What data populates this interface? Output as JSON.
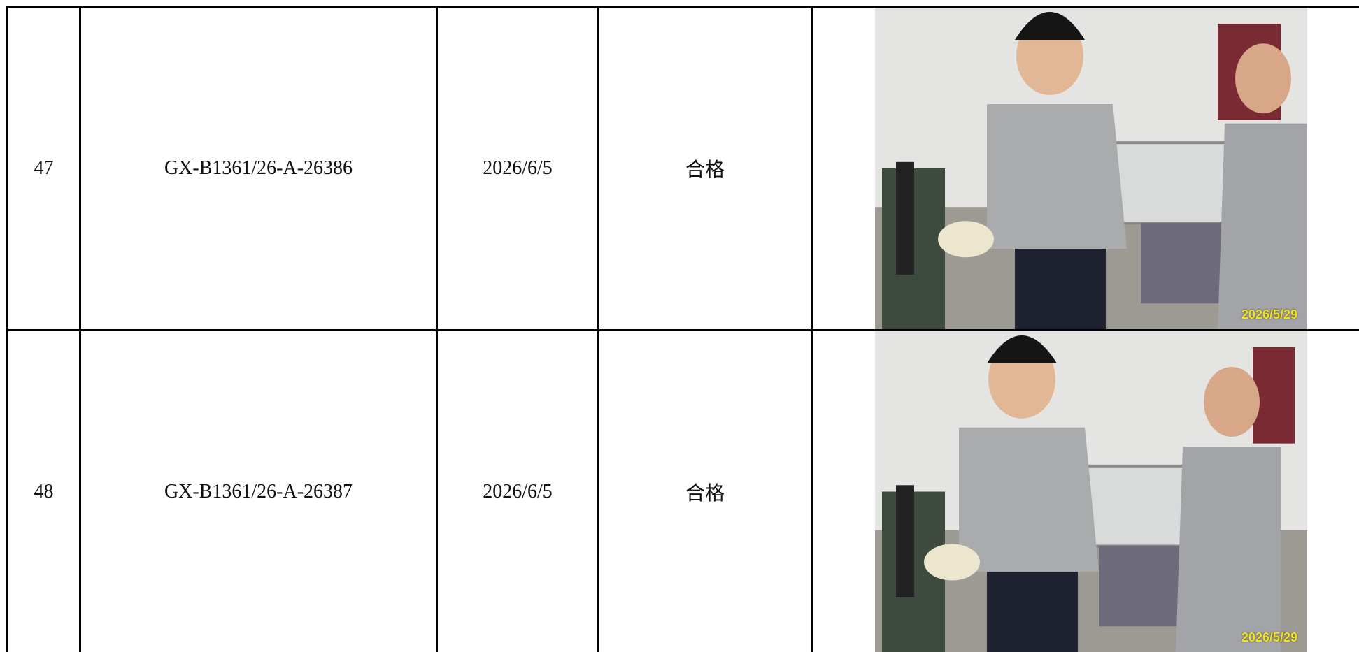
{
  "table": {
    "rows": [
      [
        "47",
        "GX-B1361/26-A-26386",
        "2026/6/5",
        "合格",
        "2026/5/29"
      ],
      [
        "48",
        "GX-B1361/26-A-26387",
        "2026/6/5",
        "合格",
        "2026/5/29"
      ]
    ]
  }
}
